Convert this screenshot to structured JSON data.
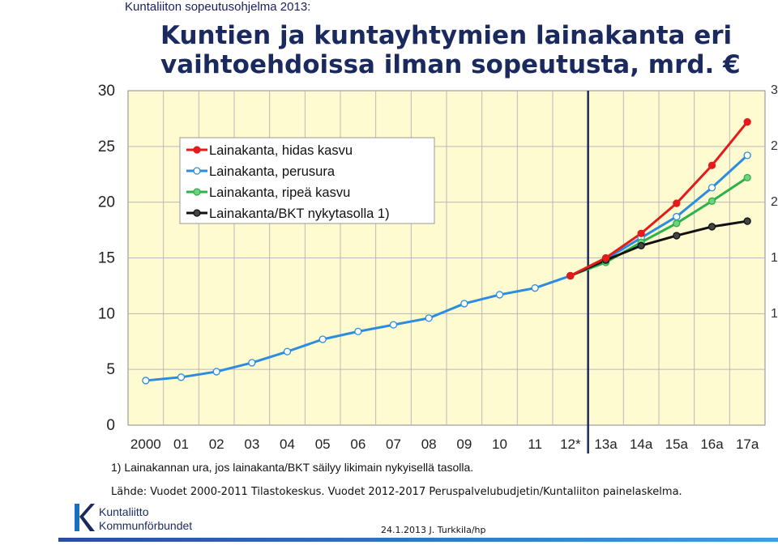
{
  "header": {
    "subtitle": "Kuntaliiton sopeutusohjelma 2013:",
    "title": "Kuntien ja kuntayhtymien lainakanta eri vaihtoehdoissa ilman sopeutusta, mrd. €"
  },
  "chart_data": {
    "type": "line",
    "categories": [
      "2000",
      "01",
      "02",
      "03",
      "04",
      "05",
      "06",
      "07",
      "08",
      "09",
      "10",
      "11",
      "12*",
      "13a",
      "14a",
      "15a",
      "16a",
      "17a"
    ],
    "ylim": [
      0,
      30
    ],
    "yticks": [
      "0",
      "5",
      "10",
      "15",
      "20",
      "25",
      "30"
    ],
    "grid": true,
    "legend_position": "top-left",
    "vertical_marker_after": "12*",
    "series": [
      {
        "name": "Lainakanta, hidas kasvu",
        "color": "#e31b1b",
        "marker": "filled",
        "values": [
          null,
          null,
          null,
          null,
          null,
          null,
          null,
          null,
          null,
          null,
          null,
          null,
          13.4,
          15.0,
          17.2,
          19.9,
          23.3,
          27.2
        ]
      },
      {
        "name": "Lainakanta, perusura",
        "color": "#2b8ce0",
        "marker": "hollow",
        "values": [
          4.0,
          4.3,
          4.8,
          5.6,
          6.6,
          7.7,
          8.4,
          9.0,
          9.6,
          10.9,
          11.7,
          12.3,
          13.4,
          14.9,
          16.8,
          18.7,
          21.3,
          24.2
        ]
      },
      {
        "name": "Lainakanta, ripeä kasvu",
        "color": "#2bb24a",
        "marker": "filled-light",
        "values": [
          null,
          null,
          null,
          null,
          null,
          null,
          null,
          null,
          null,
          null,
          null,
          null,
          13.4,
          14.6,
          16.4,
          18.1,
          20.1,
          22.2
        ]
      },
      {
        "name": "Lainakanta/BKT nykytasolla 1)",
        "color": "#111111",
        "marker": "filled-dark",
        "values": [
          null,
          null,
          null,
          null,
          null,
          null,
          null,
          null,
          null,
          null,
          null,
          null,
          13.4,
          14.8,
          16.1,
          17.0,
          17.8,
          18.3
        ]
      }
    ]
  },
  "footnote": "1) Lainakannan ura, jos  lainakanta/BKT säilyy likimain nykyisellä tasolla.",
  "source": "Lähde: Vuodet 2000-2011 Tilastokeskus. Vuodet 2012-2017 Peruspalvelubudjetin/Kuntaliiton painelaskelma.",
  "logo": {
    "line1": "Kuntaliitto",
    "line2": "Kommunförbundet"
  },
  "date_author": "24.1.2013 J. Turkkila/hp",
  "right_axis_ticks": [
    "3",
    "2",
    "2",
    "1",
    "1"
  ],
  "colors": {
    "plot_bg": "#fffbd0",
    "title": "#1b2a5e",
    "marker_line": "#1b2a5e"
  }
}
